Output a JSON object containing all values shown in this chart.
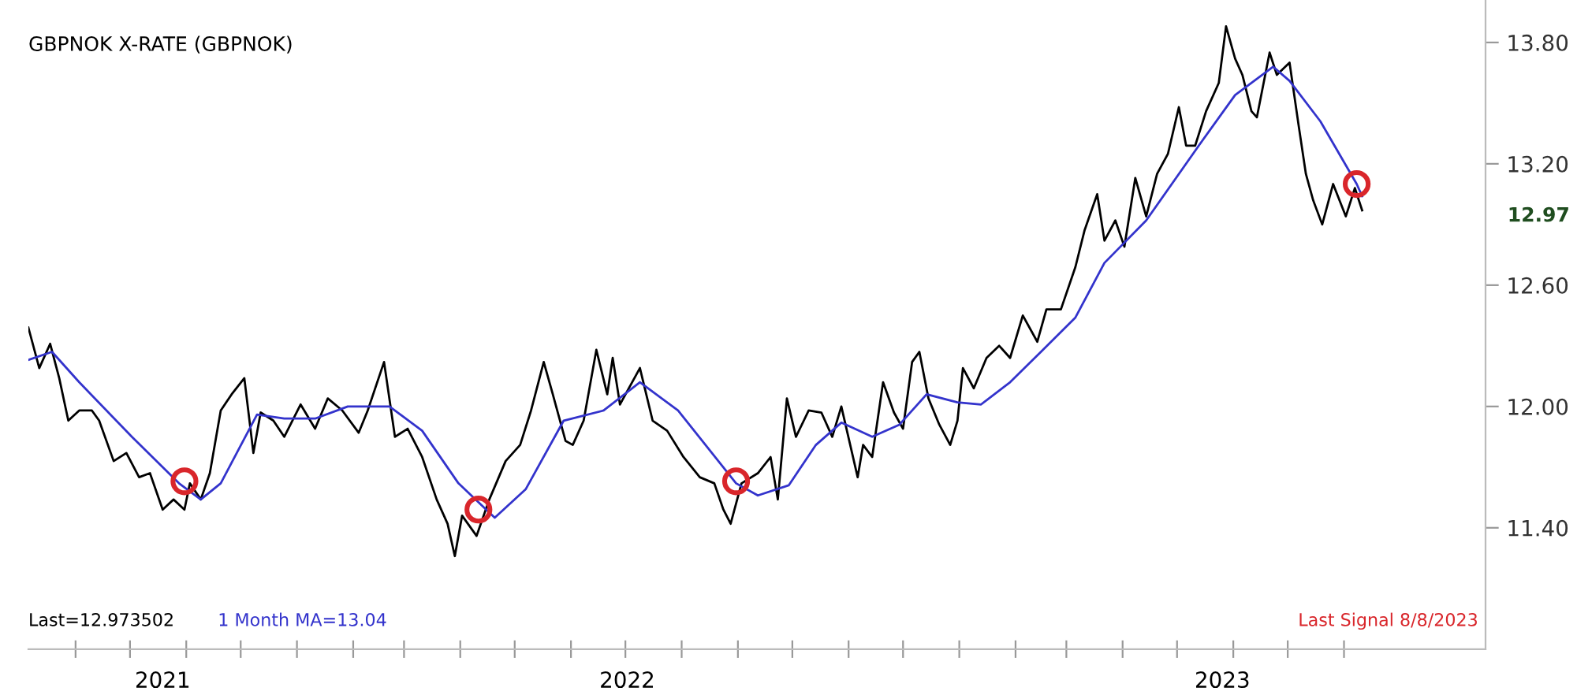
{
  "chart_data": {
    "type": "line",
    "title": "GBPNOK X-RATE (GBPNOK)",
    "xlim": [
      "2021-08-06",
      "2023-10-18"
    ],
    "xticks": [
      {
        "value": "2021-09-01",
        "label": null
      },
      {
        "value": "2021-10-01",
        "label": null
      },
      {
        "value": "2021-11-01",
        "label": null
      },
      {
        "value": "2021-12-01",
        "label": null
      },
      {
        "value": "2022-01-01",
        "label": null
      },
      {
        "value": "2022-02-01",
        "label": null
      },
      {
        "value": "2022-03-01",
        "label": null
      },
      {
        "value": "2022-04-01",
        "label": null
      },
      {
        "value": "2022-05-01",
        "label": null
      },
      {
        "value": "2022-06-01",
        "label": null
      },
      {
        "value": "2022-07-01",
        "label": null
      },
      {
        "value": "2022-08-01",
        "label": null
      },
      {
        "value": "2022-09-01",
        "label": null
      },
      {
        "value": "2022-10-01",
        "label": null
      },
      {
        "value": "2022-11-01",
        "label": null
      },
      {
        "value": "2022-12-01",
        "label": null
      },
      {
        "value": "2023-01-01",
        "label": null
      },
      {
        "value": "2023-02-01",
        "label": null
      },
      {
        "value": "2023-03-01",
        "label": null
      },
      {
        "value": "2023-04-01",
        "label": null
      },
      {
        "value": "2023-05-01",
        "label": null
      },
      {
        "value": "2023-06-01",
        "label": null
      },
      {
        "value": "2023-07-01",
        "label": null
      },
      {
        "value": "2023-08-01",
        "label": null
      },
      {
        "value": "2021-10-19",
        "label": "2021"
      },
      {
        "value": "2022-07-02",
        "label": "2022"
      },
      {
        "value": "2023-05-26",
        "label": "2023"
      }
    ],
    "ylim": [
      10.8,
      14.01
    ],
    "yticks": [
      {
        "value": 11.4,
        "label": "11.40"
      },
      {
        "value": 12.0,
        "label": "12.00"
      },
      {
        "value": 12.6,
        "label": "12.60"
      },
      {
        "value": 13.2,
        "label": "13.20"
      },
      {
        "value": 13.8,
        "label": "13.80"
      }
    ],
    "grid": false,
    "series": [
      {
        "name": "Last=12.973502",
        "color": "#000000",
        "x": [
          "2021-08-06",
          "2021-08-12",
          "2021-08-18",
          "2021-08-23",
          "2021-08-28",
          "2021-09-03",
          "2021-09-10",
          "2021-09-14",
          "2021-09-22",
          "2021-09-29",
          "2021-10-06",
          "2021-10-12",
          "2021-10-19",
          "2021-10-25",
          "2021-10-31",
          "2021-11-03",
          "2021-11-09",
          "2021-11-14",
          "2021-11-20",
          "2021-11-26",
          "2021-12-03",
          "2021-12-08",
          "2021-12-12",
          "2021-12-19",
          "2021-12-25",
          "2022-01-03",
          "2022-01-11",
          "2022-01-18",
          "2022-01-26",
          "2022-02-04",
          "2022-02-09",
          "2022-02-18",
          "2022-02-24",
          "2022-03-03",
          "2022-03-11",
          "2022-03-19",
          "2022-03-25",
          "2022-03-29",
          "2022-04-02",
          "2022-04-10",
          "2022-04-17",
          "2022-04-26",
          "2022-05-04",
          "2022-05-10",
          "2022-05-17",
          "2022-05-22",
          "2022-05-29",
          "2022-06-02",
          "2022-06-08",
          "2022-06-15",
          "2022-06-21",
          "2022-06-24",
          "2022-06-28",
          "2022-07-09",
          "2022-07-16",
          "2022-07-24",
          "2022-08-02",
          "2022-08-11",
          "2022-08-19",
          "2022-08-24",
          "2022-08-28",
          "2022-09-03",
          "2022-09-12",
          "2022-09-19",
          "2022-09-23",
          "2022-09-28",
          "2022-10-03",
          "2022-10-10",
          "2022-10-17",
          "2022-10-23",
          "2022-10-28",
          "2022-11-06",
          "2022-11-09",
          "2022-11-14",
          "2022-11-20",
          "2022-11-26",
          "2022-12-01",
          "2022-12-06",
          "2022-12-10",
          "2022-12-15",
          "2022-12-21",
          "2022-12-27",
          "2022-12-31",
          "2023-01-03",
          "2023-01-09",
          "2023-01-16",
          "2023-01-23",
          "2023-01-29",
          "2023-02-05",
          "2023-02-13",
          "2023-02-18",
          "2023-02-26",
          "2023-03-06",
          "2023-03-11",
          "2023-03-18",
          "2023-03-22",
          "2023-03-28",
          "2023-04-02",
          "2023-04-08",
          "2023-04-14",
          "2023-04-20",
          "2023-04-26",
          "2023-05-02",
          "2023-05-06",
          "2023-05-11",
          "2023-05-17",
          "2023-05-24",
          "2023-05-28",
          "2023-06-02",
          "2023-06-06",
          "2023-06-11",
          "2023-06-14",
          "2023-06-21",
          "2023-06-25",
          "2023-07-02",
          "2023-07-07",
          "2023-07-11",
          "2023-07-15",
          "2023-07-20",
          "2023-07-26",
          "2023-08-02",
          "2023-08-07",
          "2023-08-11"
        ],
        "values": [
          12.39,
          12.19,
          12.31,
          12.14,
          11.93,
          11.98,
          11.98,
          11.93,
          11.73,
          11.77,
          11.65,
          11.67,
          11.49,
          11.54,
          11.49,
          11.62,
          11.54,
          11.67,
          11.98,
          12.06,
          12.14,
          11.77,
          11.97,
          11.93,
          11.85,
          12.01,
          11.89,
          12.04,
          11.98,
          11.87,
          11.98,
          12.22,
          11.85,
          11.89,
          11.75,
          11.54,
          11.42,
          11.26,
          11.46,
          11.36,
          11.54,
          11.73,
          11.81,
          11.98,
          12.22,
          12.06,
          11.83,
          11.81,
          11.93,
          12.28,
          12.06,
          12.24,
          12.01,
          12.19,
          11.93,
          11.88,
          11.75,
          11.65,
          11.62,
          11.49,
          11.42,
          11.62,
          11.67,
          11.75,
          11.54,
          12.04,
          11.85,
          11.98,
          11.97,
          11.85,
          12.0,
          11.65,
          11.81,
          11.75,
          12.12,
          11.97,
          11.89,
          12.22,
          12.27,
          12.04,
          11.91,
          11.81,
          11.93,
          12.19,
          12.09,
          12.24,
          12.3,
          12.24,
          12.45,
          12.32,
          12.48,
          12.48,
          12.69,
          12.87,
          13.05,
          12.82,
          12.92,
          12.79,
          13.13,
          12.94,
          13.15,
          13.25,
          13.48,
          13.29,
          13.29,
          13.46,
          13.6,
          13.88,
          13.72,
          13.64,
          13.46,
          13.43,
          13.75,
          13.64,
          13.7,
          13.39,
          13.15,
          13.02,
          12.9,
          13.1,
          12.94,
          13.08,
          12.97
        ]
      },
      {
        "name": "1 Month MA=13.04",
        "color": "#3333cc",
        "x": [
          "2021-08-06",
          "2021-08-19",
          "2021-09-03",
          "2021-10-02",
          "2021-10-28",
          "2021-11-09",
          "2021-11-20",
          "2021-12-10",
          "2021-12-25",
          "2022-01-11",
          "2022-01-29",
          "2022-02-21",
          "2022-03-11",
          "2022-03-31",
          "2022-04-20",
          "2022-05-07",
          "2022-05-28",
          "2022-06-19",
          "2022-07-09",
          "2022-07-30",
          "2022-08-31",
          "2022-09-12",
          "2022-09-29",
          "2022-10-14",
          "2022-10-28",
          "2022-11-14",
          "2022-11-29",
          "2022-12-14",
          "2022-12-31",
          "2023-01-13",
          "2023-01-29",
          "2023-02-15",
          "2023-03-06",
          "2023-03-22",
          "2023-04-14",
          "2023-05-13",
          "2023-06-02",
          "2023-06-23",
          "2023-07-02",
          "2023-07-19",
          "2023-08-08",
          "2023-08-11"
        ],
        "values": [
          12.23,
          12.27,
          12.12,
          11.85,
          11.62,
          11.54,
          11.62,
          11.96,
          11.94,
          11.94,
          12.0,
          12.0,
          11.88,
          11.62,
          11.45,
          11.59,
          11.93,
          11.98,
          12.12,
          11.98,
          11.62,
          11.56,
          11.61,
          11.81,
          11.92,
          11.85,
          11.91,
          12.06,
          12.02,
          12.01,
          12.12,
          12.27,
          12.44,
          12.71,
          12.92,
          13.29,
          13.54,
          13.68,
          13.61,
          13.41,
          13.1,
          13.04
        ]
      },
      {
        "color": "#d9262b",
        "type": "scatter",
        "marker": "circle",
        "x": [
          "2021-10-31",
          "2022-04-11",
          "2022-08-31",
          "2023-08-08"
        ],
        "values": [
          11.63,
          11.49,
          11.63,
          13.1
        ]
      }
    ],
    "annotations": [
      "Last Signal 8/8/2023",
      "12.97"
    ]
  }
}
